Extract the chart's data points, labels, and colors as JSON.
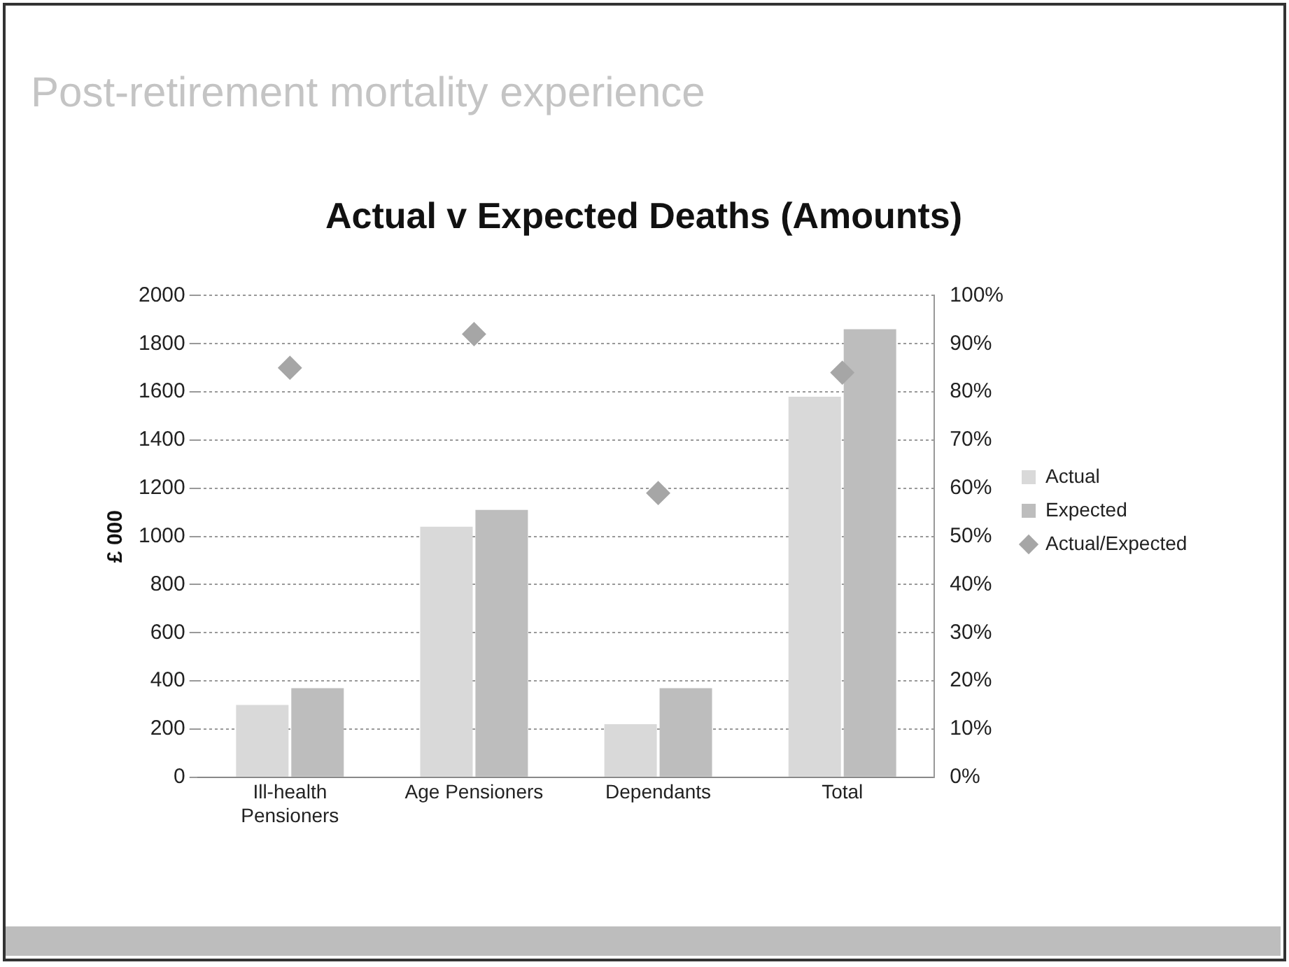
{
  "chart_data": {
    "type": "bar",
    "title": "Actual v Expected Deaths (Amounts)",
    "ylabel": "£ 000",
    "annotations": [
      "Post-retirement mortality experience"
    ],
    "categories": [
      "Ill-health Pensioners",
      "Age Pensioners",
      "Dependants",
      "Total"
    ],
    "series": [
      {
        "name": "Actual",
        "color": "#d9d9d9",
        "values": [
          300,
          1040,
          220,
          1580
        ]
      },
      {
        "name": "Expected",
        "color": "#bdbdbd",
        "values": [
          370,
          1110,
          370,
          1860
        ]
      },
      {
        "name": "Actual/Expected",
        "type": "scatter",
        "axis": "y2",
        "marker": "diamond",
        "color": "#a6a6a6",
        "values": [
          85,
          92,
          59,
          84
        ]
      }
    ],
    "ylim": [
      0,
      2000
    ],
    "yticks": [
      0,
      200,
      400,
      600,
      800,
      1000,
      1200,
      1400,
      1600,
      1800,
      2000
    ],
    "y2lim": [
      0,
      100
    ],
    "y2ticks": [
      {
        "value": 0,
        "label": "0%"
      },
      {
        "value": 10,
        "label": "10%"
      },
      {
        "value": 20,
        "label": "20%"
      },
      {
        "value": 30,
        "label": "30%"
      },
      {
        "value": 40,
        "label": "40%"
      },
      {
        "value": 50,
        "label": "50%"
      },
      {
        "value": 60,
        "label": "60%"
      },
      {
        "value": 70,
        "label": "70%"
      },
      {
        "value": 80,
        "label": "80%"
      },
      {
        "value": 90,
        "label": "90%"
      },
      {
        "value": 100,
        "label": "100%"
      }
    ],
    "grid": "y",
    "legend": "right"
  }
}
